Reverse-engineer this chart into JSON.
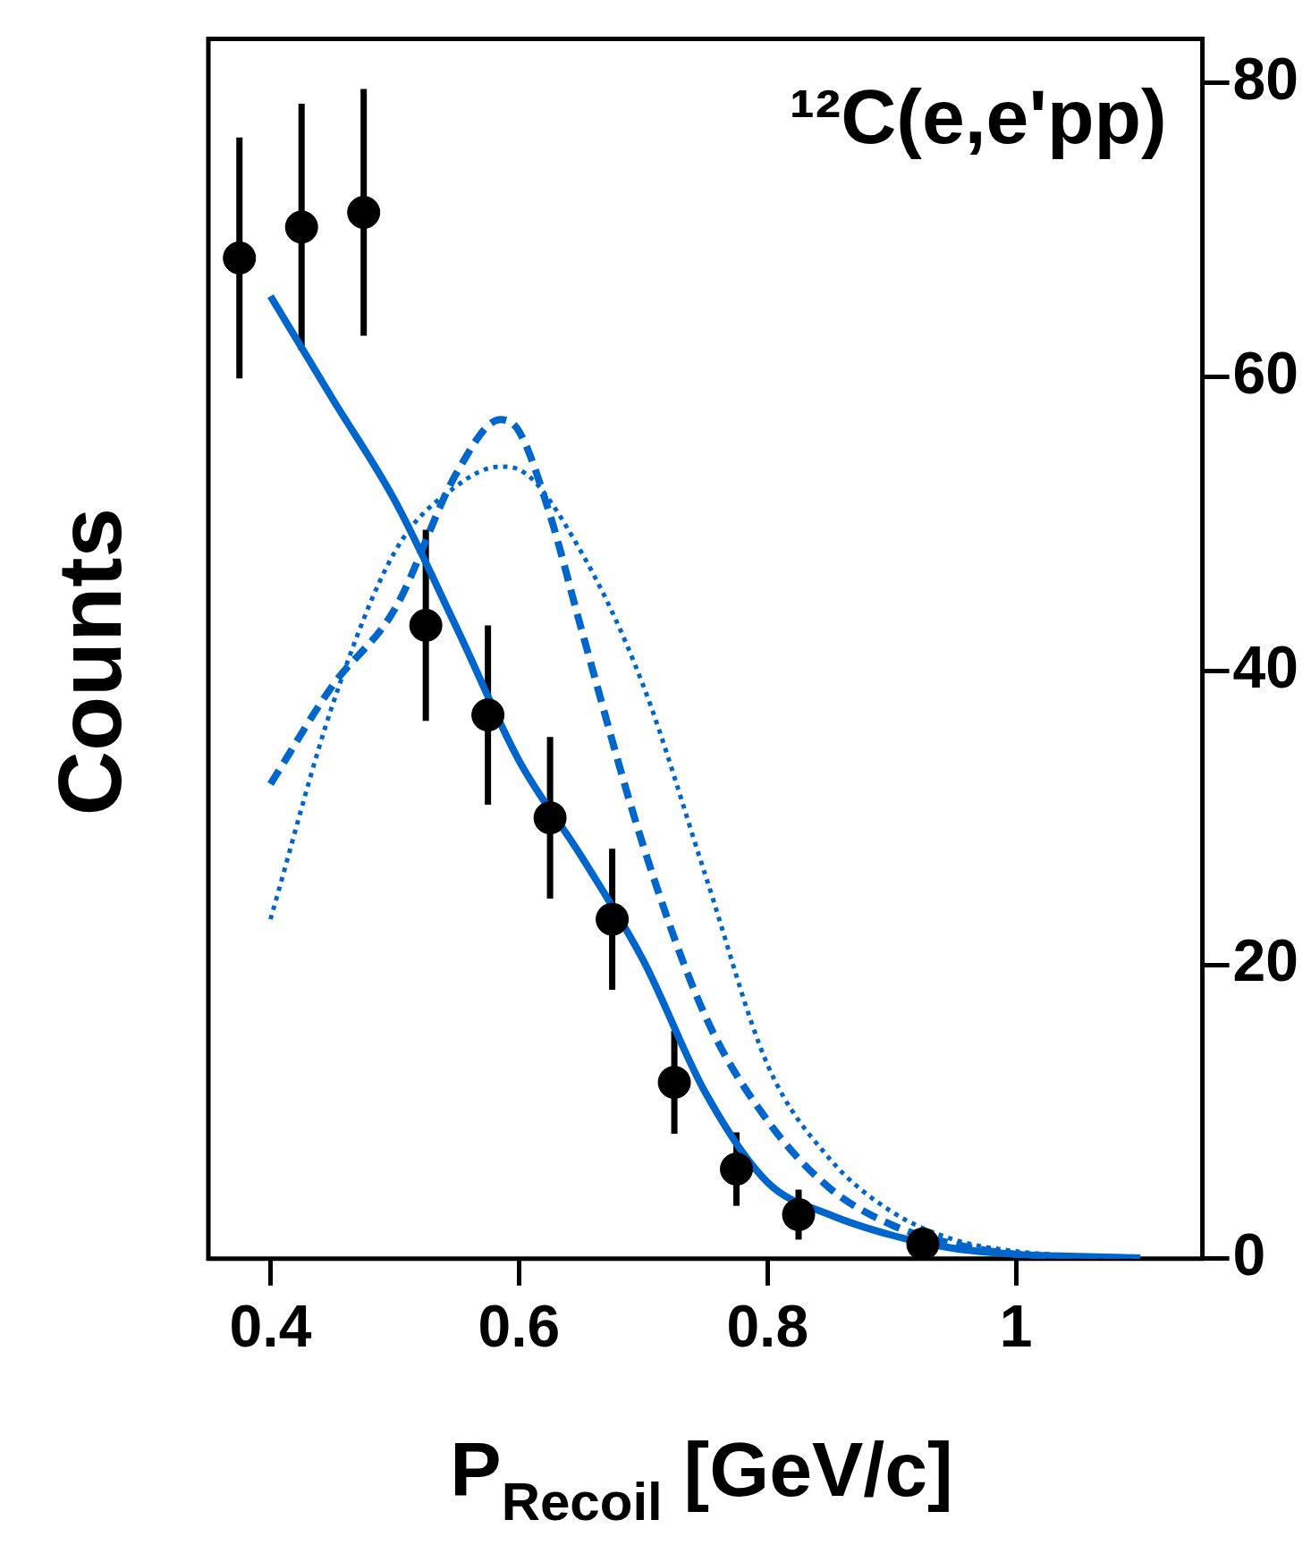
{
  "chart_data": {
    "type": "scatter",
    "xlabel": "P$_{Recoil}$ [GeV/c]",
    "ylabel": "Counts",
    "annotations": [
      "¹²C(e,e'pp)"
    ],
    "xlim": [
      0.35,
      1.15
    ],
    "xticks": [
      {
        "value": 0.4,
        "label": "0.4"
      },
      {
        "value": 0.6,
        "label": "0.6"
      },
      {
        "value": 0.8,
        "label": "0.8"
      },
      {
        "value": 1,
        "label": "1"
      }
    ],
    "ylim": [
      0,
      83
    ],
    "yticks": [
      0,
      20,
      40,
      60,
      80
    ],
    "grid": false,
    "legend": false,
    "series": [
      {
        "color": "#000000",
        "marker": "circle",
        "x": [
          0.375,
          0.425,
          0.475,
          0.525,
          0.575,
          0.625,
          0.675,
          0.725,
          0.775,
          0.825,
          0.925
        ],
        "values": [
          68.1,
          70.2,
          71.2,
          43.1,
          37.0,
          30.0,
          23.1,
          12.0,
          6.1,
          3.0,
          1.0
        ],
        "errors": [
          8.2,
          8.4,
          8.4,
          6.5,
          6.1,
          5.5,
          4.8,
          3.5,
          2.5,
          1.7,
          1.0
        ]
      },
      {
        "type": "line",
        "color": "#0066cc",
        "line_style": "solid",
        "marker": "none",
        "x": [
          0.4,
          0.45,
          0.5,
          0.55,
          0.6,
          0.65,
          0.7,
          0.75,
          0.8,
          0.85,
          0.9,
          0.95,
          1.0,
          1.05,
          1.1
        ],
        "values": [
          65.5,
          58.5,
          51.6,
          42.9,
          33.9,
          27.4,
          20.3,
          11.3,
          5.2,
          3.0,
          1.6,
          0.7,
          0.3,
          0.15,
          0.05
        ]
      },
      {
        "type": "line",
        "color": "#0066cc",
        "line_style": "dashed",
        "marker": "none",
        "x": [
          0.4,
          0.45,
          0.5,
          0.55,
          0.585,
          0.6,
          0.625,
          0.65,
          0.7,
          0.75,
          0.8,
          0.85,
          0.9,
          0.95,
          1.0,
          1.05,
          1.1
        ],
        "values": [
          32.3,
          39.0,
          44.2,
          53.5,
          57.1,
          56.3,
          50.6,
          42.9,
          28.1,
          16.5,
          9.4,
          4.8,
          2.3,
          1.0,
          0.3,
          0.1,
          0.05
        ]
      },
      {
        "type": "line",
        "color": "#0066cc",
        "line_style": "dotted",
        "marker": "none",
        "x": [
          0.4,
          0.45,
          0.5,
          0.55,
          0.585,
          0.6,
          0.65,
          0.7,
          0.75,
          0.8,
          0.85,
          0.9,
          0.95,
          1.0,
          1.05,
          1.1
        ],
        "values": [
          23.1,
          37.7,
          48.1,
          52.6,
          53.9,
          53.7,
          48.1,
          39.0,
          26.1,
          13.2,
          6.8,
          3.2,
          1.3,
          0.5,
          0.2,
          0.05
        ]
      }
    ]
  }
}
